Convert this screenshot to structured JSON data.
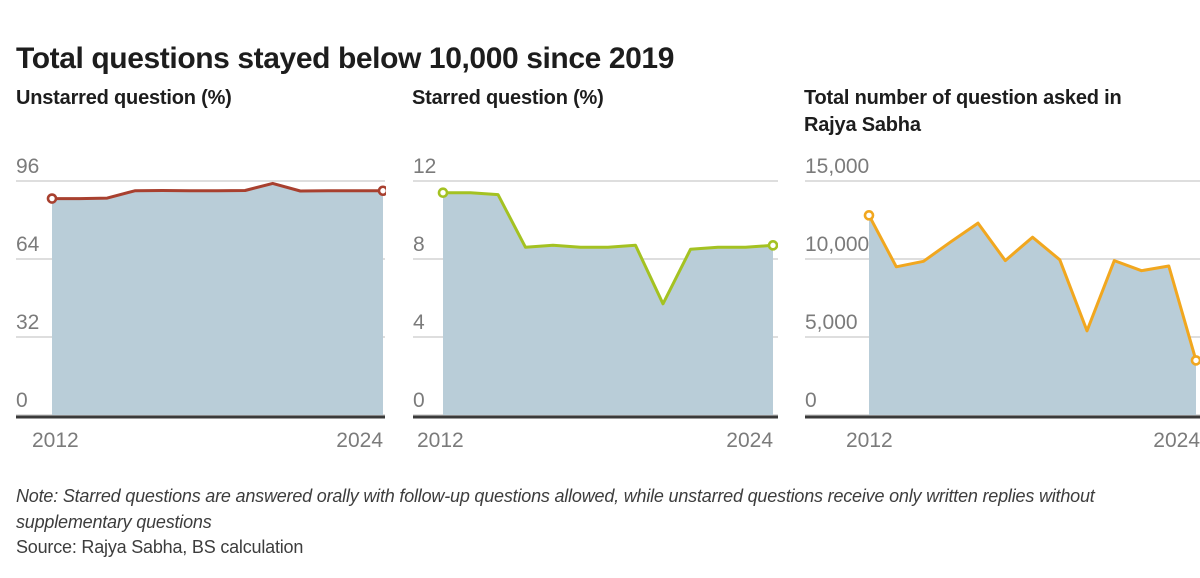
{
  "page": {
    "title": "Total questions stayed below 10,000 since 2019",
    "note": "Note: Starred questions are answered orally with follow-up questions allowed, while unstarred questions receive only written replies without supplementary questions",
    "source": "Source: Rajya Sabha, BS calculation"
  },
  "colors": {
    "area_fill": "#b9cdd8",
    "gridline": "#d4d4d4",
    "axis_line": "#3a3a3a",
    "tick_label": "#7b7b7b",
    "unstarred_line": "#a8402f",
    "starred_line": "#a4c222",
    "total_line": "#f1a71f"
  },
  "chart_data": [
    {
      "type": "area",
      "title": "Unstarred question (%)",
      "title2": "",
      "x": [
        2012,
        2013,
        2014,
        2015,
        2016,
        2017,
        2018,
        2019,
        2020,
        2021,
        2022,
        2023,
        2024
      ],
      "values": [
        88.8,
        88.8,
        89.0,
        92.0,
        92.1,
        92.0,
        92.0,
        92.1,
        95.0,
        91.9,
        92.0,
        92.0,
        92.0
      ],
      "ylim": [
        0,
        96
      ],
      "yticks": [
        96,
        64,
        32,
        0
      ],
      "ytick_labels": [
        "96",
        "64",
        "32",
        "0"
      ],
      "xtick_labels": [
        "2012",
        "2024"
      ],
      "line_color": "#a8402f",
      "fill_color": "#b9cdd8",
      "legend": "none",
      "grid": "horizontal"
    },
    {
      "type": "area",
      "title": "Starred question (%)",
      "title2": "",
      "x": [
        2012,
        2013,
        2014,
        2015,
        2016,
        2017,
        2018,
        2019,
        2020,
        2021,
        2022,
        2023,
        2024
      ],
      "values": [
        11.4,
        11.4,
        11.3,
        8.6,
        8.7,
        8.6,
        8.6,
        8.7,
        5.7,
        8.5,
        8.6,
        8.6,
        8.7
      ],
      "ylim": [
        0,
        12
      ],
      "yticks": [
        12,
        8,
        4,
        0
      ],
      "ytick_labels": [
        "12",
        "8",
        "4",
        "0"
      ],
      "xtick_labels": [
        "2012",
        "2024"
      ],
      "line_color": "#a4c222",
      "fill_color": "#b9cdd8",
      "legend": "none",
      "grid": "horizontal"
    },
    {
      "type": "area",
      "title": "Total number of question asked in",
      "title2": "Rajya Sabha",
      "x": [
        2012,
        2013,
        2014,
        2015,
        2016,
        2017,
        2018,
        2019,
        2020,
        2021,
        2022,
        2023,
        2024
      ],
      "values": [
        12800,
        9500,
        9850,
        11100,
        12300,
        9900,
        11400,
        9950,
        5400,
        9900,
        9250,
        9550,
        3500
      ],
      "ylim": [
        0,
        15000
      ],
      "yticks": [
        15000,
        10000,
        5000,
        0
      ],
      "ytick_labels": [
        "15,000",
        "10,000",
        "5,000",
        "0"
      ],
      "xtick_labels": [
        "2012",
        "2024"
      ],
      "line_color": "#f1a71f",
      "fill_color": "#b9cdd8",
      "legend": "none",
      "grid": "horizontal"
    }
  ]
}
